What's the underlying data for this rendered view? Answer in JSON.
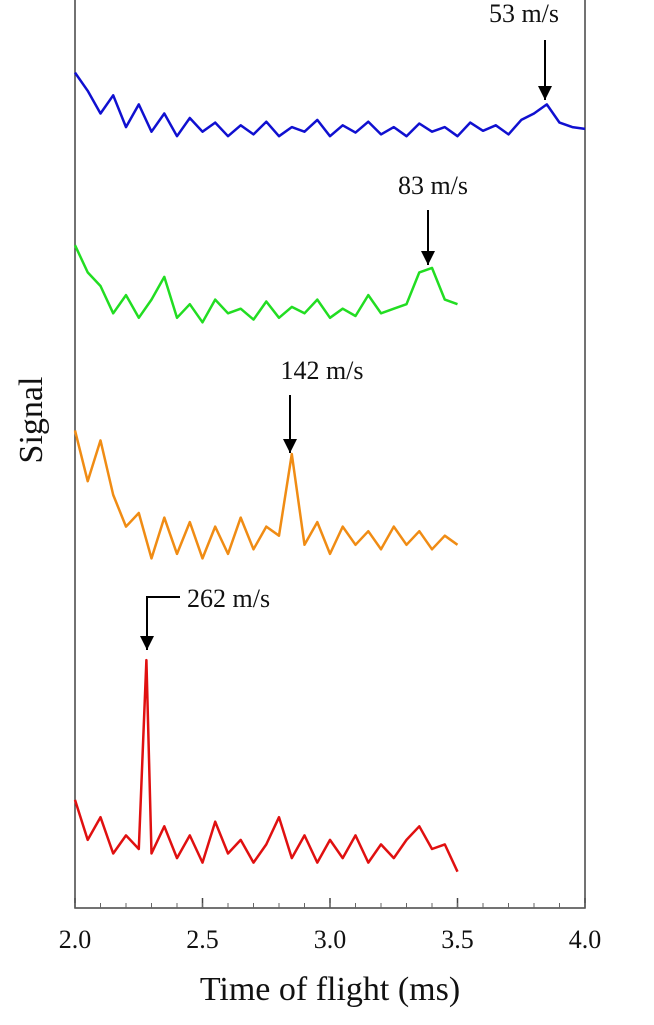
{
  "chart_data": {
    "type": "line",
    "x_label": "Time of flight (ms)",
    "y_label": "Signal",
    "xlim": [
      2,
      4
    ],
    "ylim": [
      0,
      10
    ],
    "xticks": [
      {
        "value": 2,
        "label": "2.0"
      },
      {
        "value": 2.5,
        "label": "2.5"
      },
      {
        "value": 3,
        "label": "3.0"
      },
      {
        "value": 3.5,
        "label": "3.5"
      },
      {
        "value": 4,
        "label": "4.0"
      }
    ],
    "series": [
      {
        "color": "#1010d0",
        "x": [
          2.0,
          2.05,
          2.1,
          2.15,
          2.2,
          2.25,
          2.3,
          2.35,
          2.4,
          2.45,
          2.5,
          2.55,
          2.6,
          2.65,
          2.7,
          2.75,
          2.8,
          2.85,
          2.9,
          2.95,
          3.0,
          3.05,
          3.1,
          3.15,
          3.2,
          3.25,
          3.3,
          3.35,
          3.4,
          3.45,
          3.5,
          3.55,
          3.6,
          3.65,
          3.7,
          3.75,
          3.8,
          3.85,
          3.9,
          3.95,
          4.0
        ],
        "values": [
          9.2,
          9.0,
          8.75,
          8.95,
          8.6,
          8.85,
          8.55,
          8.75,
          8.5,
          8.7,
          8.55,
          8.65,
          8.5,
          8.62,
          8.52,
          8.66,
          8.5,
          8.6,
          8.55,
          8.68,
          8.5,
          8.62,
          8.54,
          8.66,
          8.52,
          8.6,
          8.5,
          8.64,
          8.55,
          8.6,
          8.5,
          8.65,
          8.56,
          8.62,
          8.52,
          8.68,
          8.75,
          8.85,
          8.65,
          8.6,
          8.58
        ]
      },
      {
        "color": "#22dd22",
        "x": [
          2.0,
          2.05,
          2.1,
          2.15,
          2.2,
          2.25,
          2.3,
          2.35,
          2.4,
          2.45,
          2.5,
          2.55,
          2.6,
          2.65,
          2.7,
          2.75,
          2.8,
          2.85,
          2.9,
          2.95,
          3.0,
          3.05,
          3.1,
          3.15,
          3.2,
          3.25,
          3.3,
          3.35,
          3.4,
          3.45,
          3.5
        ],
        "values": [
          7.3,
          7.0,
          6.85,
          6.55,
          6.75,
          6.5,
          6.7,
          6.95,
          6.5,
          6.65,
          6.45,
          6.7,
          6.55,
          6.6,
          6.48,
          6.68,
          6.5,
          6.62,
          6.55,
          6.7,
          6.5,
          6.6,
          6.52,
          6.75,
          6.55,
          6.6,
          6.65,
          7.0,
          7.05,
          6.7,
          6.65
        ]
      },
      {
        "color": "#f08c14",
        "x": [
          2.0,
          2.05,
          2.1,
          2.15,
          2.2,
          2.25,
          2.3,
          2.35,
          2.4,
          2.45,
          2.5,
          2.55,
          2.6,
          2.65,
          2.7,
          2.75,
          2.8,
          2.85,
          2.9,
          2.95,
          3.0,
          3.05,
          3.1,
          3.15,
          3.2,
          3.25,
          3.3,
          3.35,
          3.4,
          3.45,
          3.5
        ],
        "values": [
          5.26,
          4.7,
          5.15,
          4.55,
          4.2,
          4.35,
          3.85,
          4.3,
          3.9,
          4.25,
          3.85,
          4.2,
          3.9,
          4.3,
          3.95,
          4.2,
          4.1,
          5.0,
          4.0,
          4.25,
          3.9,
          4.2,
          4.0,
          4.15,
          3.95,
          4.2,
          4.0,
          4.15,
          3.95,
          4.1,
          4.0
        ]
      },
      {
        "color": "#e01010",
        "x": [
          2.0,
          2.05,
          2.1,
          2.15,
          2.2,
          2.25,
          2.28,
          2.3,
          2.35,
          2.4,
          2.45,
          2.5,
          2.55,
          2.6,
          2.65,
          2.7,
          2.75,
          2.8,
          2.85,
          2.9,
          2.95,
          3.0,
          3.05,
          3.1,
          3.15,
          3.2,
          3.25,
          3.3,
          3.35,
          3.4,
          3.45,
          3.5
        ],
        "values": [
          1.19,
          0.75,
          1.0,
          0.6,
          0.8,
          0.65,
          2.73,
          0.6,
          0.9,
          0.55,
          0.8,
          0.5,
          0.95,
          0.6,
          0.75,
          0.5,
          0.7,
          1.0,
          0.55,
          0.8,
          0.5,
          0.75,
          0.55,
          0.8,
          0.5,
          0.7,
          0.55,
          0.75,
          0.9,
          0.65,
          0.7,
          0.4
        ]
      }
    ],
    "annotations": [
      "53 m/s",
      "83 m/s",
      "142 m/s",
      "262 m/s"
    ]
  }
}
